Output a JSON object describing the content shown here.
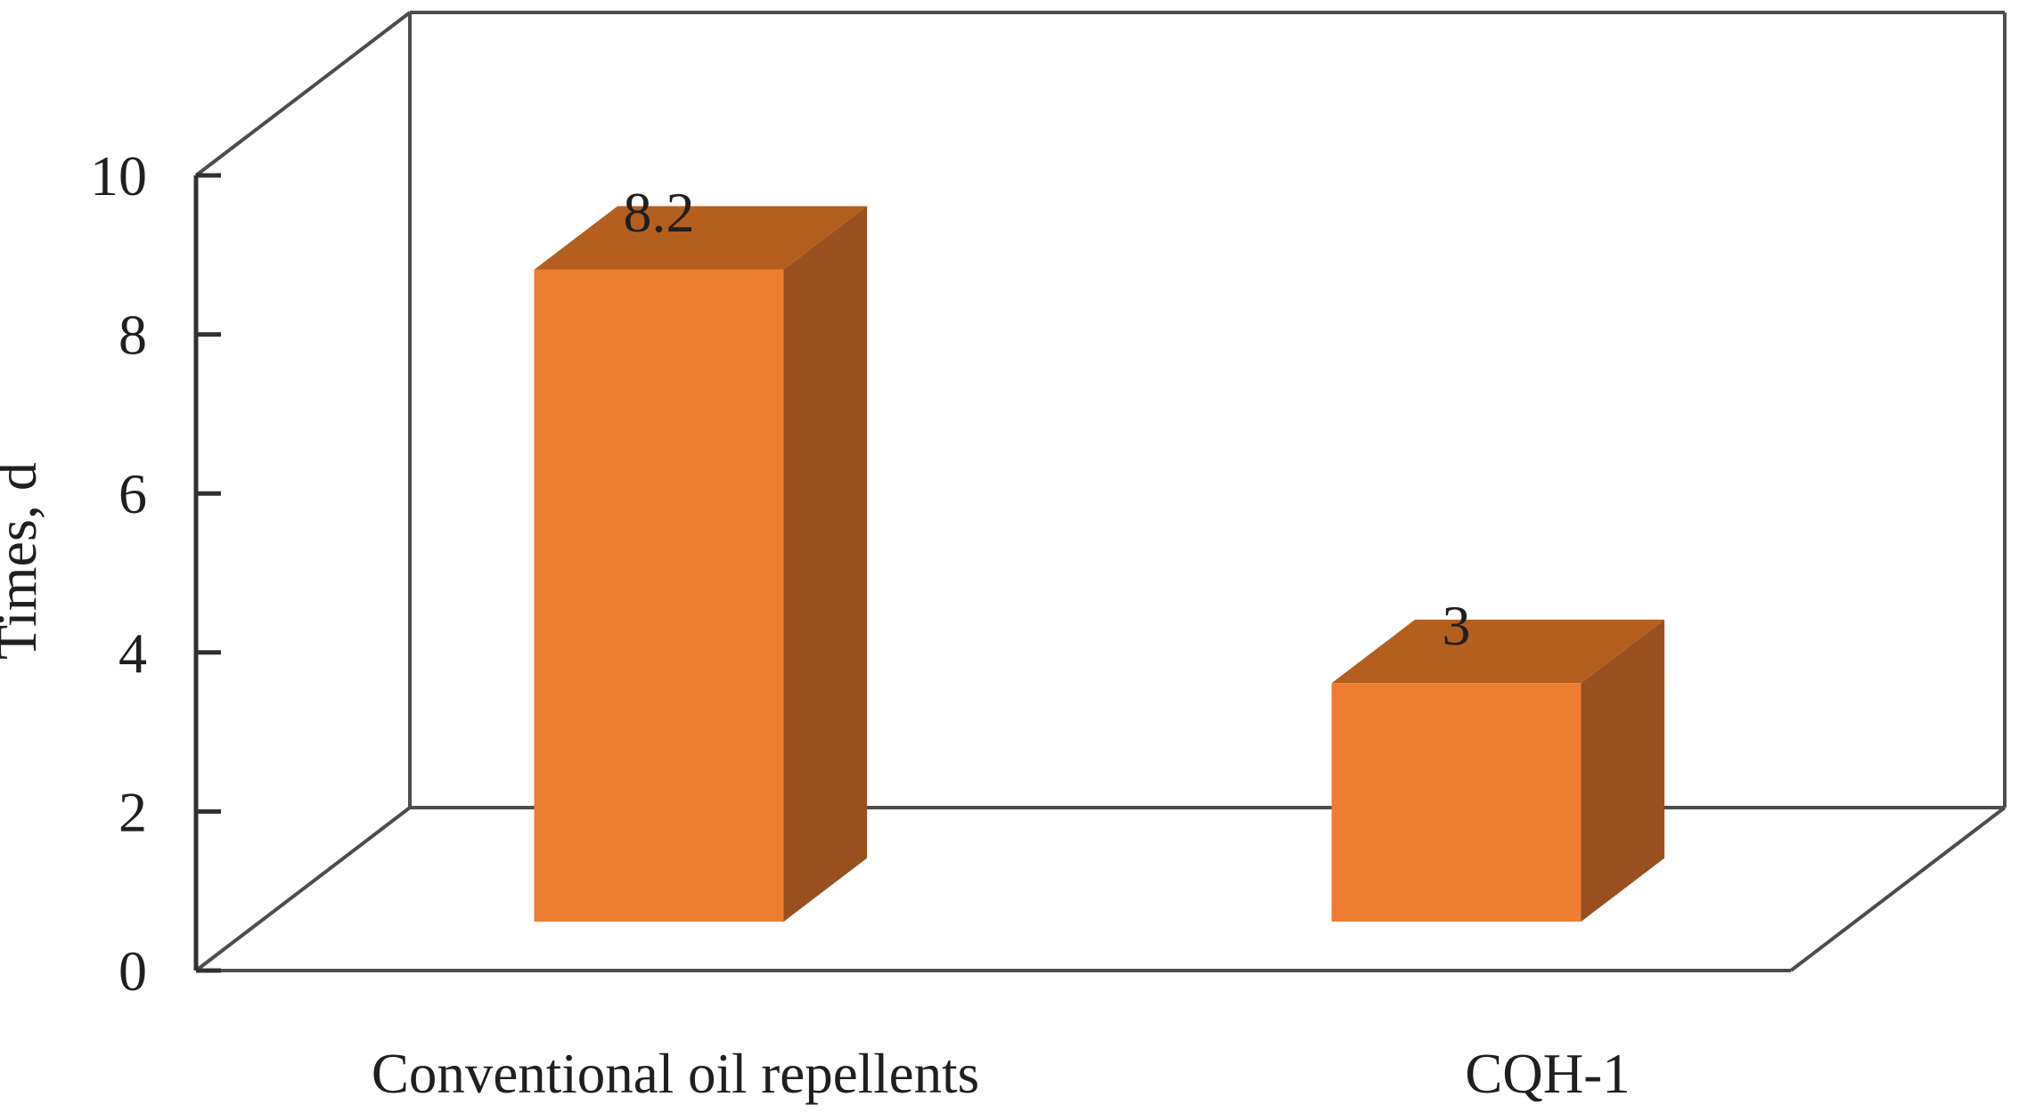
{
  "figure": {
    "background": "#ffffff"
  },
  "chart_data": {
    "type": "bar",
    "projection": "3d",
    "title": "",
    "xlabel": "",
    "ylabel": "Times, d",
    "categories": [
      "Conventional oil repellents",
      "CQH-1"
    ],
    "values": [
      8.2,
      3
    ],
    "data_labels": [
      "8.2",
      "3"
    ],
    "ylim": [
      0,
      10
    ],
    "yticks": [
      0,
      2,
      4,
      6,
      8,
      10
    ],
    "ytick_labels": [
      "0",
      "2",
      "4",
      "6",
      "8",
      "10"
    ],
    "grid": false,
    "legend": false,
    "colors": {
      "bar_front": "#ED7D31",
      "bar_top": "#B55F1F",
      "bar_side": "#9A501E",
      "axis_line": "#303030",
      "wall_line": "#4d4d4d",
      "text": "#1f1f1f"
    }
  }
}
